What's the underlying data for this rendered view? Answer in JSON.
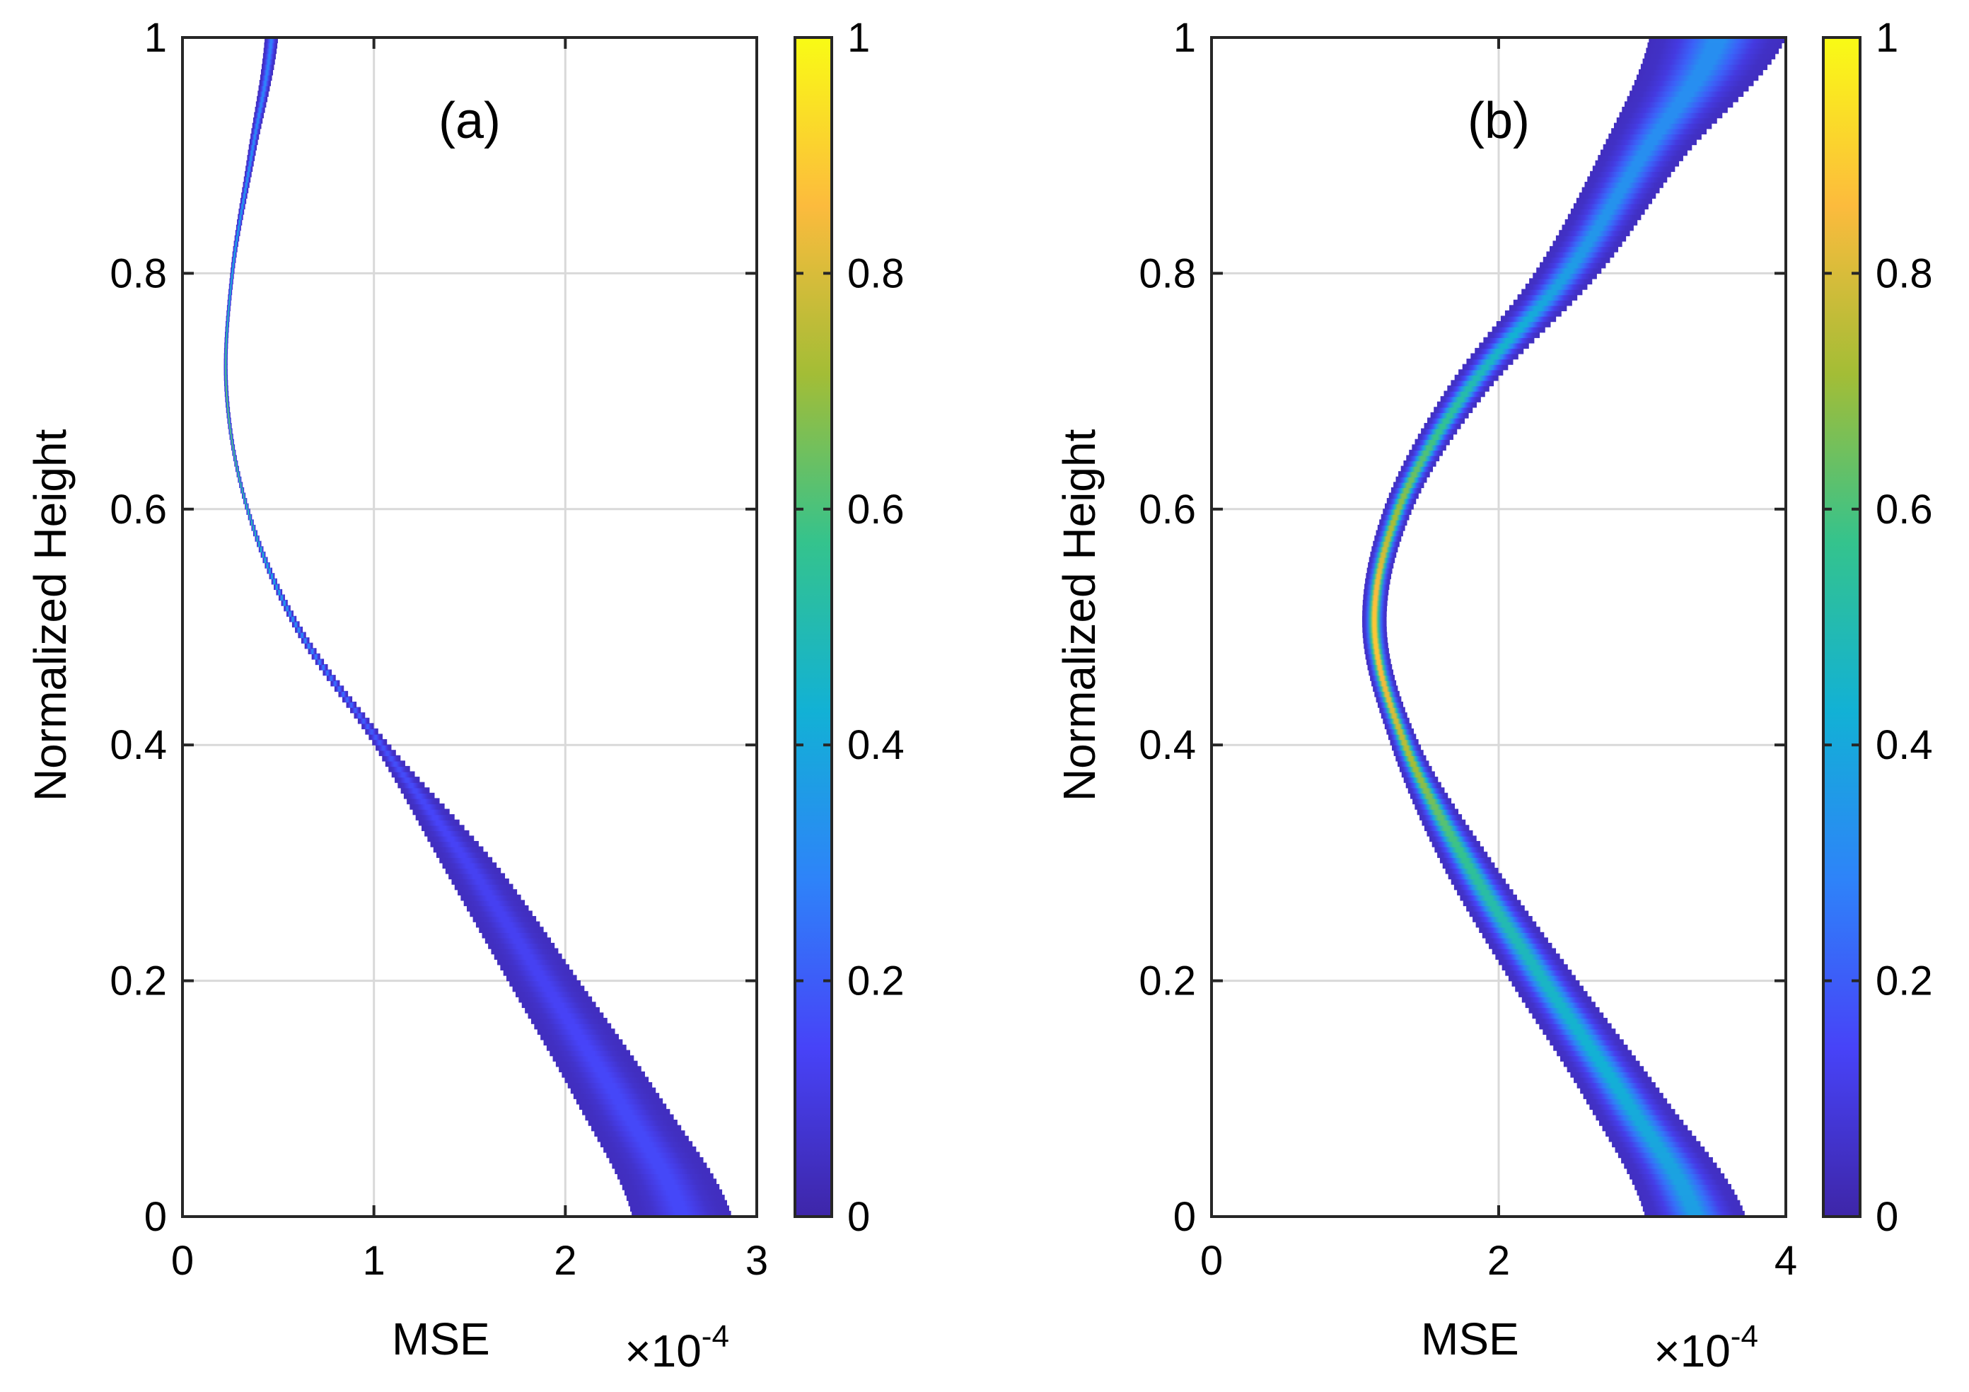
{
  "figure": {
    "colormap": [
      "#3e26a8",
      "#4743f8",
      "#2e83f9",
      "#12b1d5",
      "#34c38d",
      "#a3bd36",
      "#fcbb3d",
      "#f9fb15"
    ]
  },
  "chart_data": [
    {
      "type": "heatmap",
      "title": "",
      "panel_label": "(a)",
      "xlabel": "MSE",
      "ylabel": "Normalized Height",
      "x_multiplier": "×10",
      "x_exponent": "-4",
      "xlim": [
        0,
        3
      ],
      "ylim": [
        0,
        1
      ],
      "xticks": [
        0,
        1,
        2,
        3
      ],
      "xtick_labels": [
        "0",
        "1",
        "2",
        "3"
      ],
      "yticks": [
        0,
        0.2,
        0.4,
        0.6,
        0.8,
        1
      ],
      "ytick_labels": [
        "0",
        "0.2",
        "0.4",
        "0.6",
        "0.8",
        "1"
      ],
      "grid": true,
      "colorbar": {
        "range": [
          0,
          1
        ],
        "ticks": [
          0,
          0.2,
          0.4,
          0.6,
          0.8,
          1
        ],
        "tick_labels": [
          "0",
          "0.2",
          "0.4",
          "0.6",
          "0.8",
          "1"
        ]
      },
      "band": {
        "height": [
          0.0,
          0.1,
          0.2,
          0.3,
          0.4,
          0.5,
          0.6,
          0.7,
          0.8,
          0.9,
          1.0
        ],
        "mse_lower": [
          2.35,
          2.05,
          1.7,
          1.35,
          1.0,
          0.58,
          0.33,
          0.22,
          0.25,
          0.34,
          0.43
        ],
        "mse_upper": [
          2.87,
          2.5,
          2.07,
          1.63,
          1.08,
          0.62,
          0.35,
          0.24,
          0.27,
          0.38,
          0.5
        ],
        "peak_density": [
          0.12,
          0.12,
          0.1,
          0.1,
          0.15,
          0.3,
          0.55,
          0.65,
          0.45,
          0.3,
          0.25
        ]
      }
    },
    {
      "type": "heatmap",
      "title": "",
      "panel_label": "(b)",
      "xlabel": "MSE",
      "ylabel": "Normalized Height",
      "x_multiplier": "×10",
      "x_exponent": "-4",
      "xlim": [
        0,
        4
      ],
      "ylim": [
        0,
        1
      ],
      "xticks": [
        0,
        2,
        4
      ],
      "xtick_labels": [
        "0",
        "2",
        "4"
      ],
      "yticks": [
        0,
        0.2,
        0.4,
        0.6,
        0.8,
        1
      ],
      "ytick_labels": [
        "0",
        "0.2",
        "0.4",
        "0.6",
        "0.8",
        "1"
      ],
      "grid": true,
      "colorbar": {
        "range": [
          0,
          1
        ],
        "ticks": [
          0,
          0.2,
          0.4,
          0.6,
          0.8,
          1
        ],
        "tick_labels": [
          "0",
          "0.2",
          "0.4",
          "0.6",
          "0.8",
          "1"
        ]
      },
      "band": {
        "height": [
          0.0,
          0.1,
          0.2,
          0.3,
          0.4,
          0.5,
          0.6,
          0.7,
          0.8,
          0.9,
          1.0
        ],
        "mse_lower": [
          3.02,
          2.6,
          2.08,
          1.6,
          1.25,
          1.05,
          1.2,
          1.63,
          2.25,
          2.7,
          3.05
        ],
        "mse_upper": [
          3.72,
          3.16,
          2.55,
          1.96,
          1.45,
          1.22,
          1.4,
          1.92,
          2.7,
          3.3,
          4.0
        ],
        "peak_density": [
          0.35,
          0.4,
          0.45,
          0.55,
          0.75,
          0.9,
          0.7,
          0.5,
          0.35,
          0.3,
          0.3
        ]
      }
    }
  ]
}
